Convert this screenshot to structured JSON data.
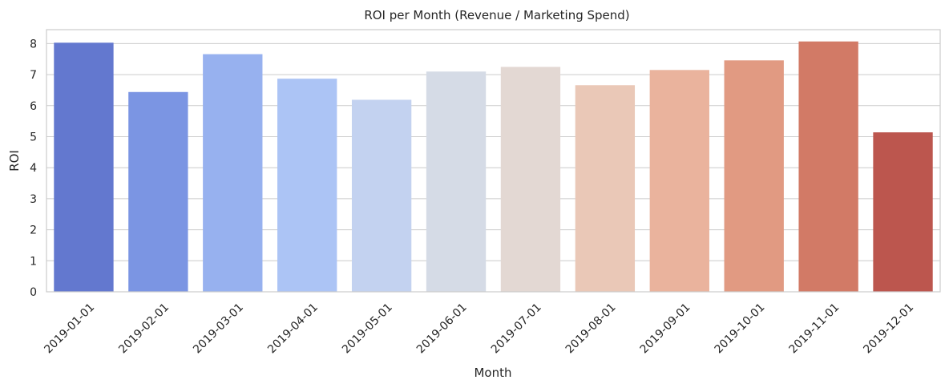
{
  "chart_data": {
    "type": "bar",
    "title": "ROI per Month (Revenue / Marketing Spend)",
    "xlabel": "Month",
    "ylabel": "ROI",
    "categories": [
      "2019-01-01",
      "2019-02-01",
      "2019-03-01",
      "2019-04-01",
      "2019-05-01",
      "2019-06-01",
      "2019-07-01",
      "2019-08-01",
      "2019-09-01",
      "2019-10-01",
      "2019-11-01",
      "2019-12-01"
    ],
    "values": [
      8.03,
      6.44,
      7.66,
      6.87,
      6.19,
      7.1,
      7.25,
      6.66,
      7.15,
      7.46,
      8.07,
      5.14
    ],
    "colors": [
      "#6378cf",
      "#7b95e3",
      "#97b1ef",
      "#acc4f5",
      "#c3d2f0",
      "#d5dbe6",
      "#e3d8d3",
      "#eac8b7",
      "#eab39d",
      "#e19a82",
      "#d27a66",
      "#bc564e"
    ],
    "yticks": [
      "0",
      "1",
      "2",
      "3",
      "4",
      "5",
      "6",
      "7",
      "8"
    ],
    "ylim": [
      0,
      8.45
    ],
    "grid": true,
    "x_tick_rotation": 45
  }
}
